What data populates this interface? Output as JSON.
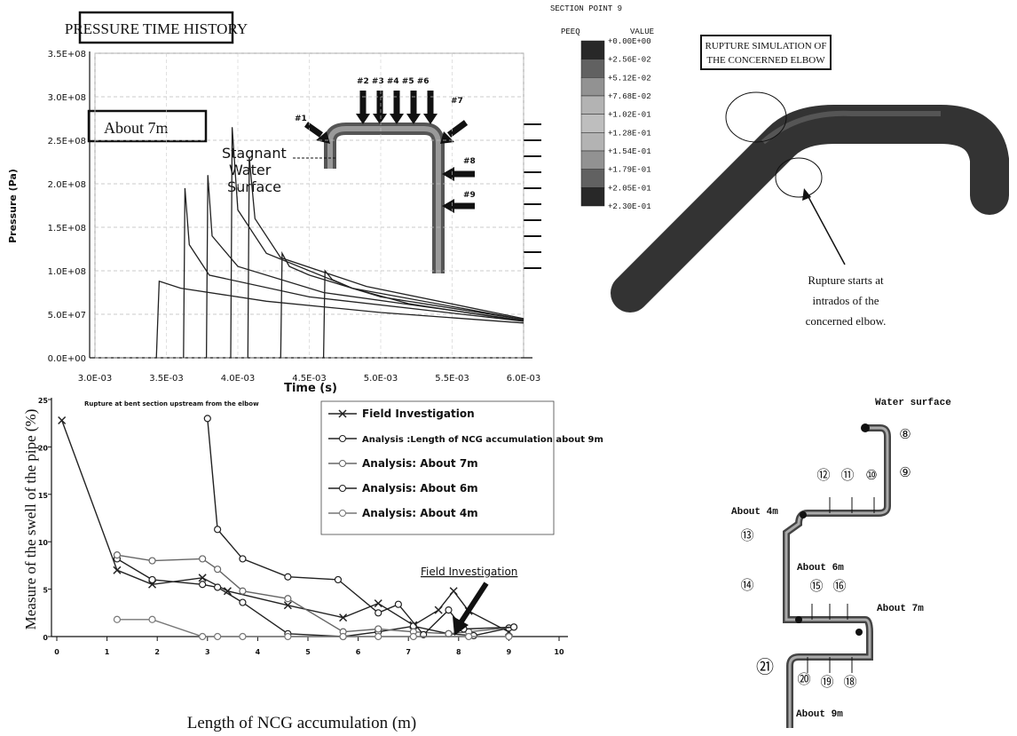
{
  "chart_data": [
    {
      "type": "line",
      "title": "PRESSURE TIME HISTORY",
      "x_label": "Time (s)",
      "y_label": "Pressure (Pa)",
      "xlim": [
        0.003,
        0.006
      ],
      "ylim": [
        0,
        350000000
      ],
      "grid": true,
      "xticks": [
        {
          "value": 0.003,
          "label": "3.0E-03"
        },
        {
          "value": 0.0035,
          "label": "3.5E-03"
        },
        {
          "value": 0.004,
          "label": "4.0E-03"
        },
        {
          "value": 0.0045,
          "label": "4.5E-03"
        },
        {
          "value": 0.005,
          "label": "5.0E-03"
        },
        {
          "value": 0.0055,
          "label": "5.5E-03"
        },
        {
          "value": 0.006,
          "label": "6.0E-03"
        }
      ],
      "yticks": [
        {
          "value": 0,
          "label": "0.0E+00"
        },
        {
          "value": 50000000,
          "label": "5.0E+07"
        },
        {
          "value": 100000000,
          "label": "1.0E+08"
        },
        {
          "value": 150000000,
          "label": "1.5E+08"
        },
        {
          "value": 200000000,
          "label": "2.0E+08"
        },
        {
          "value": 250000000,
          "label": "2.5E+08"
        },
        {
          "value": 300000000,
          "label": "3.0E+08"
        },
        {
          "value": 350000000,
          "label": "3.5E+08"
        }
      ],
      "series": [
        {
          "color": "#222",
          "x": [
            0.00343,
            0.00345,
            0.0036,
            0.0042,
            0.005,
            0.006
          ],
          "values": [
            0,
            88000000,
            80000000,
            65000000,
            52000000,
            40000000
          ]
        },
        {
          "color": "#222",
          "x": [
            0.00362,
            0.00363,
            0.00366,
            0.0038,
            0.0045,
            0.006
          ],
          "values": [
            0,
            195000000,
            130000000,
            95000000,
            70000000,
            42000000
          ]
        },
        {
          "color": "#222",
          "x": [
            0.00378,
            0.00379,
            0.00382,
            0.004,
            0.0046,
            0.006
          ],
          "values": [
            0,
            210000000,
            140000000,
            105000000,
            75000000,
            43000000
          ]
        },
        {
          "color": "#222",
          "x": [
            0.00395,
            0.00396,
            0.004,
            0.0042,
            0.0048,
            0.006
          ],
          "values": [
            0,
            265000000,
            170000000,
            120000000,
            80000000,
            44000000
          ]
        },
        {
          "color": "#222",
          "x": [
            0.00407,
            0.00408,
            0.00412,
            0.0043,
            0.0049,
            0.006
          ],
          "values": [
            0,
            230000000,
            160000000,
            115000000,
            82000000,
            45000000
          ]
        },
        {
          "color": "#222",
          "x": [
            0.0043,
            0.00431,
            0.00436,
            0.0045,
            0.005,
            0.006
          ],
          "values": [
            0,
            120000000,
            105000000,
            95000000,
            70000000,
            44000000
          ]
        },
        {
          "color": "#222",
          "x": [
            0.0046,
            0.00461,
            0.00466,
            0.0048,
            0.0052,
            0.006
          ],
          "values": [
            0,
            100000000,
            90000000,
            80000000,
            62000000,
            42000000
          ]
        }
      ]
    },
    {
      "type": "line",
      "x_label": "Length of NCG accumulation (m)",
      "y_label": "Measure of the swell of the pipe (%)",
      "xlim": [
        0,
        10
      ],
      "ylim": [
        0,
        25
      ],
      "grid": false,
      "xticks": [
        0,
        1,
        2,
        3,
        4,
        5,
        6,
        7,
        8,
        9,
        10
      ],
      "yticks": [
        0,
        5,
        10,
        15,
        20,
        25
      ],
      "annotations": [
        "Rupture at bent section upstream from the elbow",
        "Field Investigation"
      ],
      "series": [
        {
          "name": "Field Investigation",
          "color": "#222",
          "marker": "x",
          "x": [
            0.1,
            1.2,
            1.9,
            2.9,
            3.4,
            4.6,
            5.7,
            6.4,
            7.1,
            7.6,
            7.9,
            8.2,
            9
          ],
          "values": [
            22.8,
            7,
            5.5,
            6.2,
            4.8,
            3.3,
            2,
            3.5,
            1.2,
            2.8,
            4.8,
            2.7,
            0.5
          ]
        },
        {
          "name": "Analysis :Length of NCG accumulation about 9m",
          "color": "#222",
          "marker": "circle",
          "x": [
            1.2,
            1.9,
            2.9,
            3.2,
            3.7,
            4.6,
            5.7,
            6.4,
            7.1,
            7.8,
            8.3,
            9
          ],
          "values": [
            8.2,
            6,
            5.5,
            5.2,
            3.6,
            0.3,
            0,
            0.5,
            1.1,
            0.3,
            0.1,
            0.9
          ]
        },
        {
          "name": "Analysis: About 7m",
          "color": "#666",
          "marker": "circle",
          "x": [
            1.2,
            1.9,
            2.9,
            3.2,
            3.7,
            4.6,
            5.7,
            6.4,
            7.1,
            7.8,
            8.2,
            9.1
          ],
          "values": [
            8.6,
            8,
            8.2,
            7.1,
            4.8,
            4,
            0.5,
            0.8,
            0.5,
            0.3,
            0.5,
            1
          ]
        },
        {
          "name": "Analysis: About 6m",
          "color": "#222",
          "marker": "circle",
          "x": [
            3,
            3.2,
            3.7,
            4.6,
            5.6,
            6.4,
            6.8,
            7.3,
            7.8,
            8.1,
            9.1
          ],
          "values": [
            23,
            11.3,
            8.2,
            6.3,
            6,
            2.5,
            3.4,
            0.2,
            2.8,
            0.8,
            1
          ]
        },
        {
          "name": "Analysis: About 4m",
          "color": "#777",
          "marker": "circle",
          "x": [
            1.2,
            1.9,
            2.9,
            3.2,
            3.7,
            4.6,
            5.7,
            6.4,
            7.1,
            8.2,
            9
          ],
          "values": [
            1.8,
            1.8,
            0,
            0,
            0,
            0,
            0,
            0,
            0,
            0,
            0
          ]
        }
      ]
    }
  ],
  "pressure_annotations": {
    "case_label": "About 7m",
    "stagnant": [
      "Stagnant",
      "Water",
      "Surface"
    ],
    "positions": [
      "#1",
      "#2 #3 #4 #5 #6",
      "#7",
      "#8",
      "#9"
    ]
  },
  "contour_legend": {
    "section": "SECTION POINT 9",
    "variable": "PEEQ",
    "value_header": "VALUE",
    "levels": [
      "+0.00E+00",
      "+2.56E-02",
      "+5.12E-02",
      "+7.68E-02",
      "+1.02E-01",
      "+1.28E-01",
      "+1.54E-01",
      "+1.79E-01",
      "+2.05E-01",
      "+2.30E-01"
    ]
  },
  "rupture": {
    "title": [
      "RUPTURE SIMULATION OF",
      "THE CONCERNED ELBOW"
    ],
    "note": [
      "Rupture starts at",
      "intrados of the",
      "concerned elbow."
    ]
  },
  "pipe_diagram": {
    "water_surface": "Water surface",
    "lengths": [
      "About 4m",
      "About 6m",
      "About 7m",
      "About 9m"
    ],
    "points": [
      "⑧",
      "⑨",
      "⑩",
      "⑪",
      "⑫",
      "⑬",
      "⑭",
      "⑮",
      "⑯",
      "⑱",
      "⑲",
      "⑳",
      "㉑"
    ]
  }
}
